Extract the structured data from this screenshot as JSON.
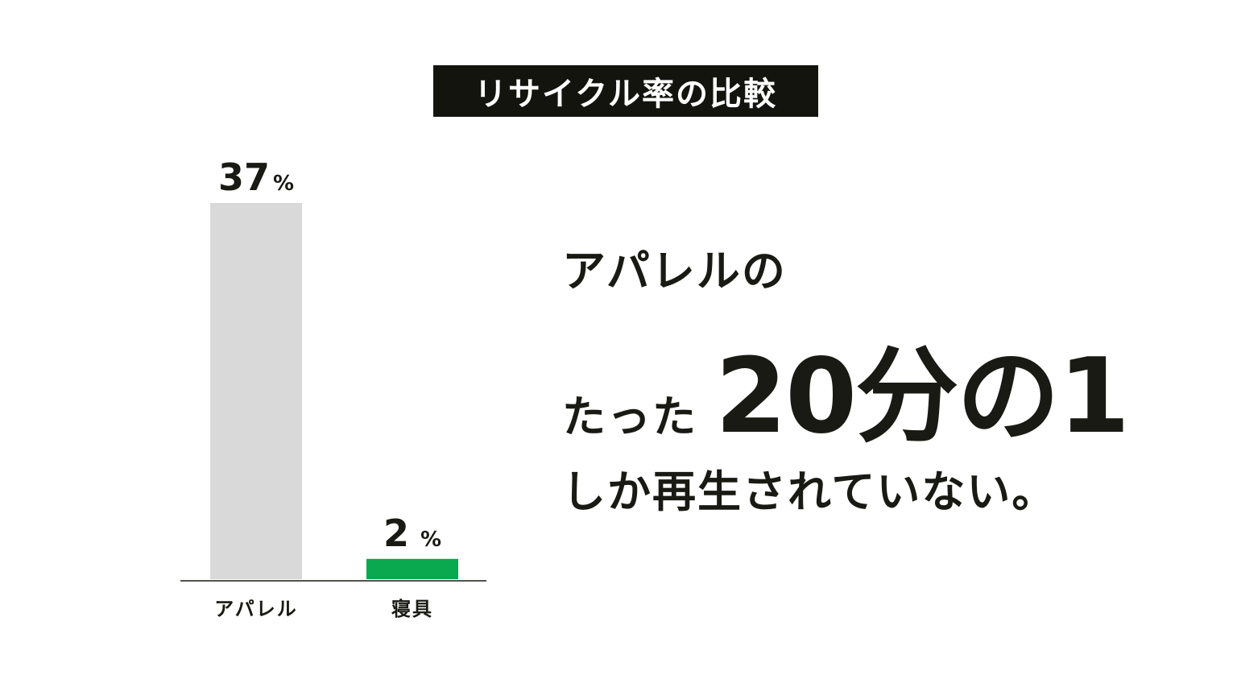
{
  "chart_data": {
    "type": "bar",
    "title": "リサイクル率の比較",
    "categories": [
      "アパレル",
      "寝具"
    ],
    "values": [
      37,
      2
    ],
    "value_labels": [
      {
        "number": "37",
        "unit": "%"
      },
      {
        "number": "2",
        "unit": "%"
      }
    ],
    "colors": [
      "#d9d9d9",
      "#0aa84f"
    ],
    "ylim": [
      0,
      37
    ],
    "grid": false
  },
  "message": {
    "line1": "アパレルの",
    "line2_prefix": "たった",
    "line2_emphasis": "20分の1",
    "line3": "しか再生されていない。"
  }
}
